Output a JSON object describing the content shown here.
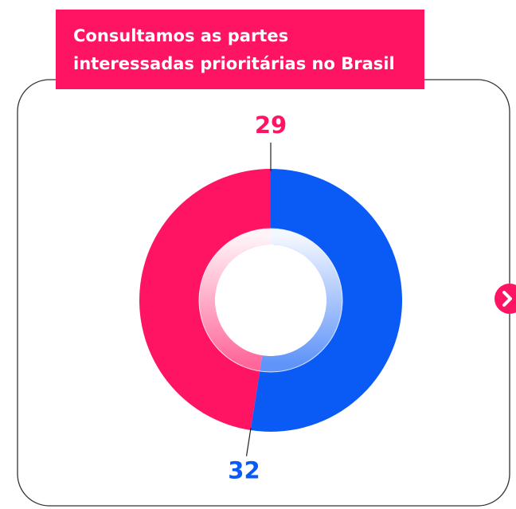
{
  "chart_data": {
    "type": "donut",
    "title": [
      "Consultamos as partes",
      "interessadas prioritárias no Brasil"
    ],
    "values": [
      32,
      29
    ],
    "colors": [
      "#0a5af5",
      "#ff1464"
    ]
  }
}
